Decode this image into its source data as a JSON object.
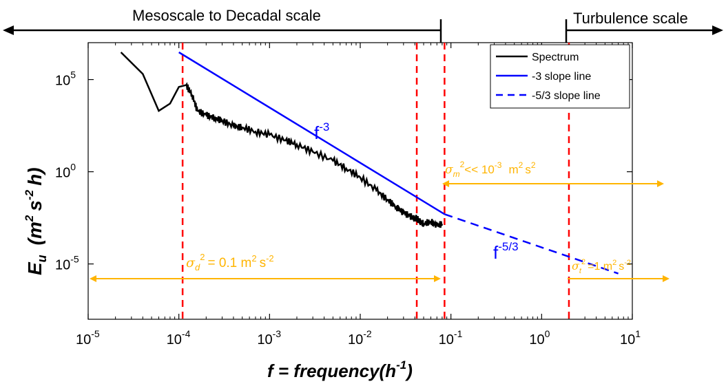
{
  "chart_data": {
    "type": "line",
    "x_scale": "log",
    "y_scale": "log",
    "xlim": [
      1e-05,
      10
    ],
    "ylim": [
      1e-08,
      10000000.0
    ],
    "grid": false,
    "legend_position": "top-right",
    "xlabel": "f = frequency(h",
    "xlabel_sup": "-1",
    "xlabel_end": ")",
    "ylabel": {
      "main": "E",
      "sub": "u",
      "open": "(m",
      "sup1": "2",
      "mid": "s",
      "sup2": "-2",
      "close": "h)"
    },
    "x_ticks": [
      {
        "value": 1e-05,
        "base": "10",
        "exp": "-5"
      },
      {
        "value": 0.0001,
        "base": "10",
        "exp": "-4"
      },
      {
        "value": 0.001,
        "base": "10",
        "exp": "-3"
      },
      {
        "value": 0.01,
        "base": "10",
        "exp": "-2"
      },
      {
        "value": 0.1,
        "base": "10",
        "exp": "-1"
      },
      {
        "value": 1,
        "base": "10",
        "exp": "0"
      },
      {
        "value": 10,
        "base": "10",
        "exp": "1"
      }
    ],
    "y_ticks": [
      {
        "value": 100000.0,
        "base": "10",
        "exp": "5"
      },
      {
        "value": 1,
        "base": "10",
        "exp": "0"
      },
      {
        "value": 1e-05,
        "base": "10",
        "exp": "-5"
      }
    ],
    "series": [
      {
        "name": "Spectrum",
        "color": "#000000",
        "style": "solid",
        "x": [
          2.3e-05,
          4e-05,
          6e-05,
          8e-05,
          0.0001,
          0.00012,
          0.00014,
          0.00016,
          0.0002,
          0.00025,
          0.0003,
          0.0004,
          0.0005,
          0.0007,
          0.001,
          0.0015,
          0.002,
          0.003,
          0.005,
          0.007,
          0.01,
          0.015,
          0.02,
          0.025,
          0.03,
          0.035,
          0.04,
          0.042,
          0.045,
          0.05,
          0.06,
          0.07,
          0.08
        ],
        "y": [
          3000000.0,
          200000.0,
          2000,
          5000,
          40000.0,
          50000.0,
          15000.0,
          2000.0,
          1200.0,
          800,
          600,
          300,
          250,
          150,
          100,
          50,
          30,
          12,
          4,
          1.5,
          0.5,
          0.1,
          0.03,
          0.012,
          0.006,
          0.004,
          0.003,
          0.003,
          0.002,
          0.0015,
          0.002,
          0.0012,
          0.0015
        ]
      },
      {
        "name": "-3 slope line",
        "color": "#0000ff",
        "style": "solid",
        "x": [
          0.0001,
          0.085
        ],
        "y": [
          3000000.0,
          0.005
        ]
      },
      {
        "name": "-5/3 slope line",
        "color": "#0000ff",
        "style": "dashed",
        "x": [
          0.085,
          7
        ],
        "y": [
          0.005,
          3e-06
        ]
      }
    ],
    "vertical_lines": [
      {
        "x": 0.00011,
        "color": "#ff0000"
      },
      {
        "x": 0.042,
        "color": "#ff0000"
      },
      {
        "x": 0.085,
        "color": "#ff0000"
      },
      {
        "x": 2,
        "color": "#ff0000"
      }
    ],
    "annotations": {
      "slope3": {
        "base": "f",
        "exp": "-3",
        "color": "#0000ff"
      },
      "slope53": {
        "base": "f",
        "exp": "-5/3",
        "color": "#0000ff"
      },
      "sigma_m": {
        "sym": "σ",
        "sub": "m",
        "sup": "2",
        "rest": "<< 10",
        "exp": "-3",
        "unit": "m",
        "unit_sup": "2",
        "unit2": "s",
        "unit2_sup": "2",
        "color": "#ffb400"
      },
      "sigma_d": {
        "sym": "σ",
        "sub": "d",
        "sup": "2",
        "rest": "= 0.1 m",
        "unit_sup": "2",
        "unit2": "s",
        "unit2_sup": "-2",
        "color": "#ffb400"
      },
      "sigma_t": {
        "sym": "σ",
        "sub": "t",
        "sup": "2",
        "rest": "=1 m",
        "unit_sup": "2",
        "unit2": "s",
        "unit2_sup": "-2",
        "color": "#ffb400"
      },
      "scale_left": "Mesoscale to Decadal scale",
      "scale_right": "Turbulence scale"
    }
  }
}
